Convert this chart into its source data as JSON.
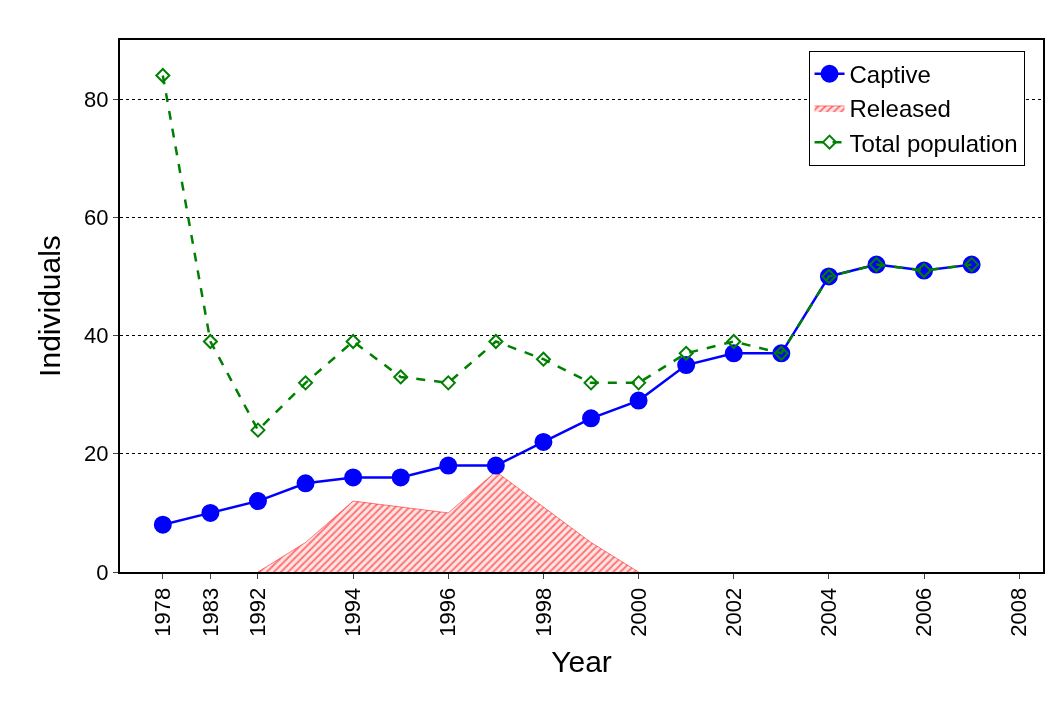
{
  "chart_data": {
    "type": "line",
    "xlabel": "Year",
    "ylabel": "Individuals",
    "categories": [
      "1978",
      "1983",
      "1992",
      null,
      "1994",
      null,
      "1996",
      null,
      "1998",
      null,
      "2000",
      null,
      "2002",
      null,
      "2004",
      null,
      "2006",
      null,
      "2008"
    ],
    "ylim": [
      0,
      90
    ],
    "yticks": [
      0,
      20,
      40,
      60,
      80
    ],
    "grid": "y",
    "legend": "top right",
    "series": [
      {
        "name": "Captive",
        "color": "#0000ff",
        "marker": "circle",
        "line_style": "solid",
        "values": [
          8,
          10,
          12,
          15,
          16,
          16,
          18,
          18,
          22,
          26,
          29,
          35,
          37,
          37,
          50,
          52,
          51,
          52,
          null
        ]
      },
      {
        "name": "Released",
        "type": "area",
        "color": "#ff0000",
        "values": [
          null,
          null,
          0,
          5,
          12,
          11,
          10,
          17,
          11,
          5,
          0,
          null,
          null,
          null,
          null,
          null,
          null,
          null,
          null
        ]
      },
      {
        "name": "Total population",
        "color": "#008000",
        "marker": "diamond",
        "line_style": "dashed",
        "values": [
          84,
          39,
          24,
          32,
          39,
          33,
          32,
          39,
          36,
          32,
          32,
          37,
          39,
          37,
          50,
          52,
          51,
          52,
          null
        ]
      }
    ]
  }
}
